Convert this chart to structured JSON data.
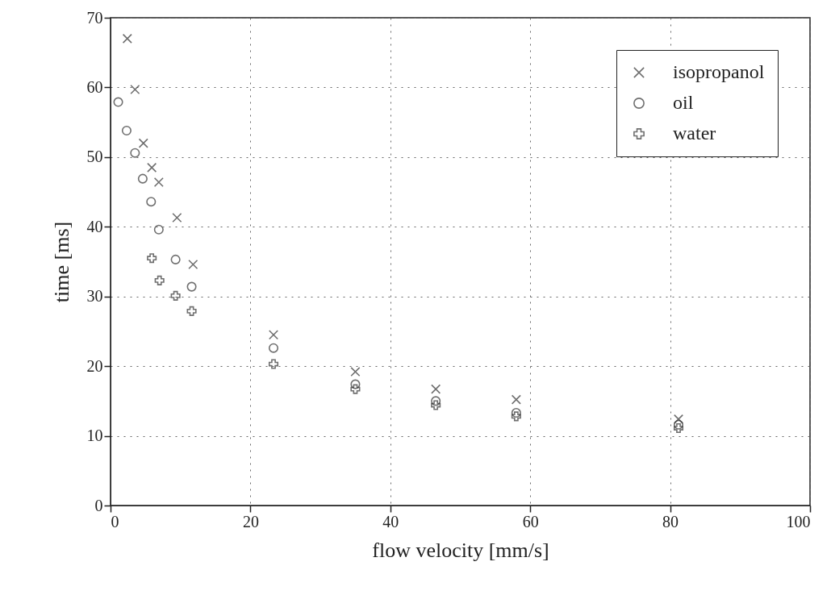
{
  "chart_data": {
    "type": "scatter",
    "xlabel": "flow velocity [mm/s]",
    "ylabel": "time [ms]",
    "xlim": [
      0,
      100
    ],
    "xticks": [
      0,
      20,
      40,
      60,
      80,
      100
    ],
    "ylim": [
      0,
      70
    ],
    "yticks": [
      0,
      10,
      20,
      30,
      40,
      50,
      60,
      70
    ],
    "grid": true,
    "legend": "top right",
    "series": [
      {
        "name": "isopropanol",
        "color": "#333333",
        "marker": "cross",
        "x": [
          2.4,
          3.5,
          4.7,
          5.9,
          6.9,
          9.5,
          11.8,
          23.3,
          35.0,
          46.5,
          58.0,
          81.2
        ],
        "values": [
          67.0,
          59.7,
          52.0,
          48.5,
          46.4,
          41.3,
          34.6,
          24.5,
          19.2,
          16.7,
          15.2,
          12.4
        ]
      },
      {
        "name": "oil",
        "color": "#333333",
        "marker": "circle",
        "x": [
          1.1,
          2.3,
          3.5,
          4.6,
          5.8,
          6.9,
          9.3,
          11.6,
          23.3,
          35.0,
          46.5,
          58.0,
          81.2
        ],
        "values": [
          57.9,
          53.8,
          50.6,
          46.9,
          43.6,
          39.6,
          35.3,
          31.4,
          22.6,
          17.4,
          15.0,
          13.3,
          11.6
        ]
      },
      {
        "name": "water",
        "color": "#333333",
        "marker": "plus",
        "x": [
          5.9,
          7.0,
          9.3,
          11.6,
          23.3,
          35.0,
          46.5,
          58.0,
          81.2
        ],
        "values": [
          35.5,
          32.3,
          30.1,
          27.9,
          20.3,
          16.7,
          14.4,
          12.8,
          11.1
        ]
      }
    ]
  }
}
